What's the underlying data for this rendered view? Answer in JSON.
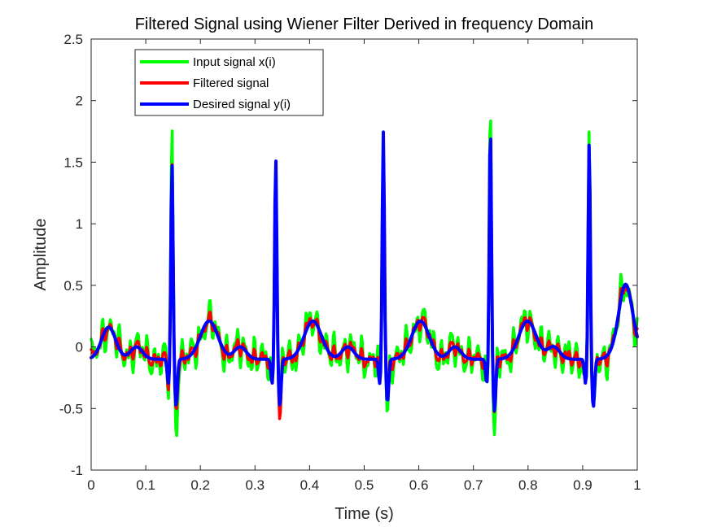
{
  "chart_data": {
    "type": "line",
    "title": "Filtered Signal using Wiener Filter Derived in frequency Domain",
    "xlabel": "Time (s)",
    "ylabel": "Amplitude",
    "xlim": [
      0,
      1
    ],
    "ylim": [
      -1,
      2.5
    ],
    "xticks": [
      0,
      0.1,
      0.2,
      0.3,
      0.4,
      0.5,
      0.6,
      0.7,
      0.8,
      0.9,
      1
    ],
    "xtick_labels": [
      "0",
      "0.1",
      "0.2",
      "0.3",
      "0.4",
      "0.5",
      "0.6",
      "0.7",
      "0.8",
      "0.9",
      "1"
    ],
    "yticks": [
      -1,
      -0.5,
      0,
      0.5,
      1,
      1.5,
      2,
      2.5
    ],
    "ytick_labels": [
      "-1",
      "-0.5",
      "0",
      "0.5",
      "1",
      "1.5",
      "2",
      "2.5"
    ],
    "grid": false,
    "legend_position": "top-left",
    "sample_count": 600,
    "beat_times": [
      0.148,
      0.338,
      0.535,
      0.731,
      0.912
    ],
    "beat_peaks": [
      1.5,
      1.54,
      1.75,
      1.81,
      1.67
    ],
    "series": [
      {
        "name": "Input signal x(i)",
        "color": "#00ff00",
        "beat_peaks": [
          1.81,
          1.6,
          1.78,
          2.04,
          1.84
        ],
        "beat_troughs": [
          -0.76,
          -0.62,
          -0.6,
          -0.82,
          -0.71
        ],
        "noise_amplitude": 0.16
      },
      {
        "name": "Filtered signal",
        "color": "#ff0000",
        "beat_peaks": [
          1.52,
          1.56,
          1.74,
          1.81,
          1.68
        ],
        "beat_troughs": [
          -0.58,
          -0.67,
          -0.5,
          -0.62,
          -0.58
        ],
        "noise_amplitude": 0.07
      },
      {
        "name": "Desired signal y(i)",
        "color": "#0000ff",
        "beat_peaks": [
          1.5,
          1.54,
          1.75,
          1.81,
          1.67
        ],
        "beat_troughs": [
          -0.56,
          -0.56,
          -0.53,
          -0.6,
          -0.57
        ],
        "noise_amplitude": 0
      }
    ]
  }
}
